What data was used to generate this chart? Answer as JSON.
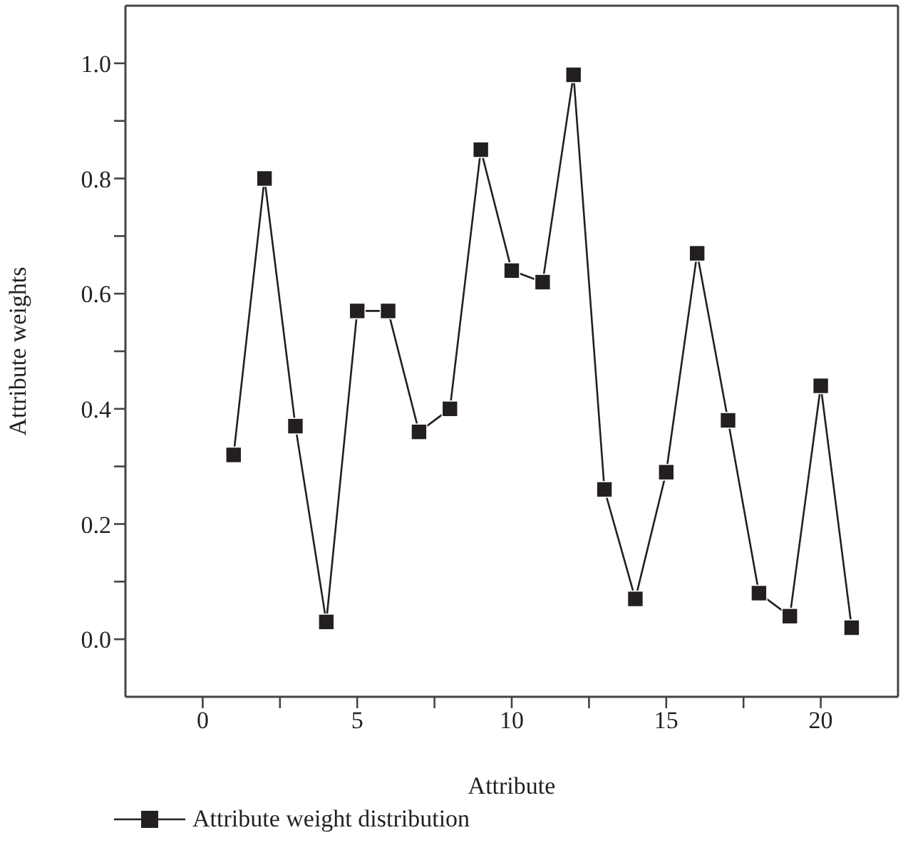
{
  "chart_data": {
    "type": "line",
    "xlabel": "Attribute",
    "ylabel": "Attribute weights",
    "x": [
      1,
      2,
      3,
      4,
      5,
      6,
      7,
      8,
      9,
      10,
      11,
      12,
      13,
      14,
      15,
      16,
      17,
      18,
      19,
      20,
      21
    ],
    "series": [
      {
        "name": "Attribute weight distribution",
        "color": "#231f20",
        "values": [
          0.32,
          0.8,
          0.37,
          0.03,
          0.57,
          0.57,
          0.36,
          0.4,
          0.85,
          0.64,
          0.62,
          0.98,
          0.26,
          0.07,
          0.29,
          0.67,
          0.38,
          0.08,
          0.04,
          0.44,
          0.02
        ]
      }
    ],
    "xlim": [
      -2.5,
      22.5
    ],
    "xticks": [
      0,
      {
        "value": 2.5,
        "label": null
      },
      5,
      {
        "value": 7.5,
        "label": null
      },
      10,
      {
        "value": 12.5,
        "label": null
      },
      15,
      {
        "value": 17.5,
        "label": null
      },
      20
    ],
    "ylim": [
      -0.1,
      1.1
    ],
    "yticks": [
      {
        "value": 0,
        "label": "0.0"
      },
      {
        "value": 0.1,
        "label": null
      },
      {
        "value": 0.2,
        "label": "0.2"
      },
      {
        "value": 0.3,
        "label": null
      },
      {
        "value": 0.4,
        "label": "0.4"
      },
      {
        "value": 0.5,
        "label": null
      },
      {
        "value": 0.6,
        "label": "0.6"
      },
      {
        "value": 0.7,
        "label": null
      },
      {
        "value": 0.8,
        "label": "0.8"
      },
      {
        "value": 0.9,
        "label": null
      },
      {
        "value": 1,
        "label": "1.0"
      }
    ],
    "grid": false,
    "legend": "bottom left",
    "marker": "square",
    "line_style": "solid"
  }
}
